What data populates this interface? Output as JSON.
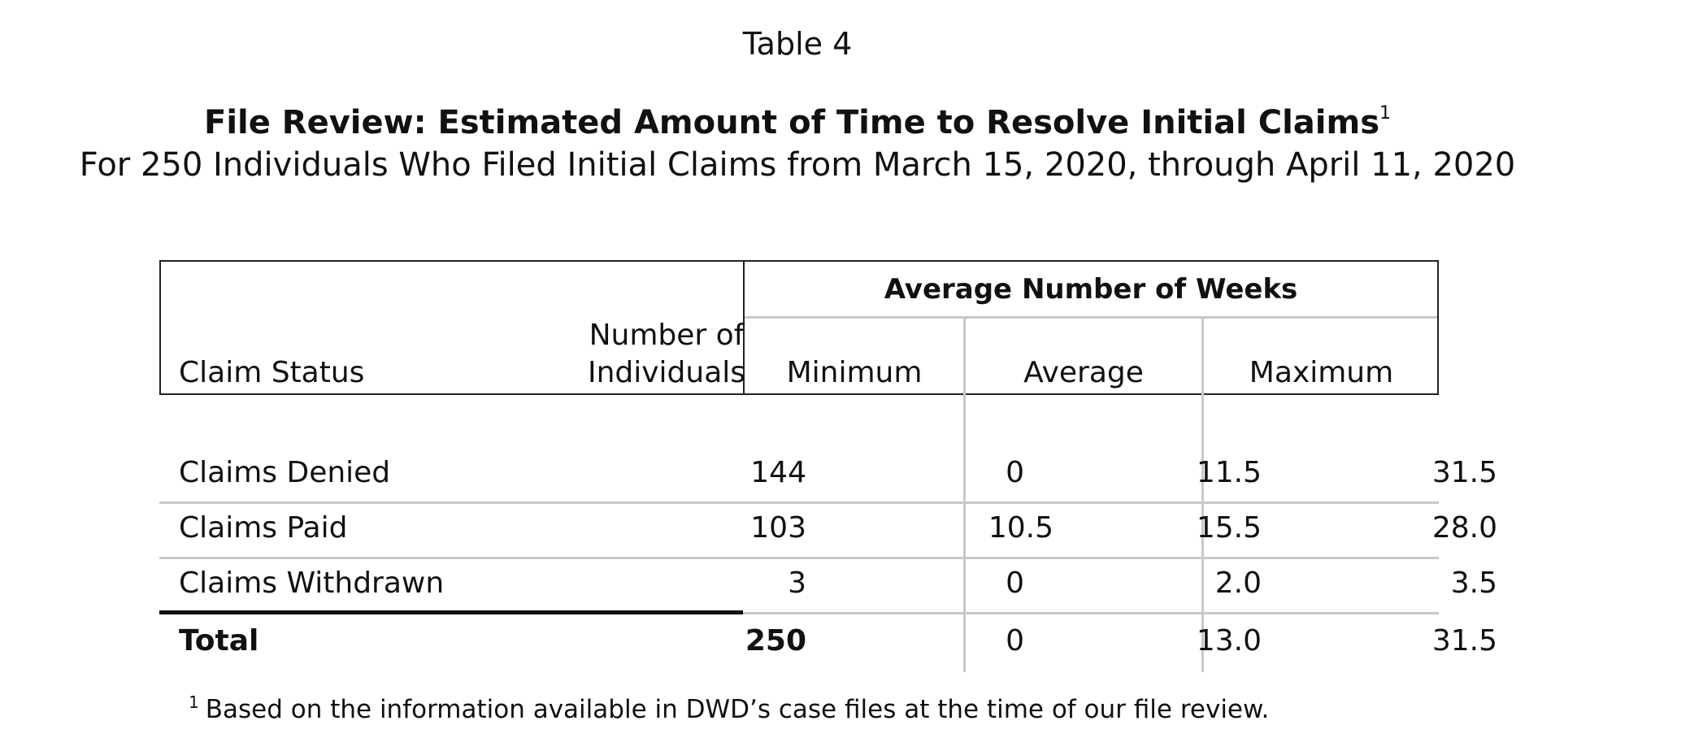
{
  "table_label": "Table 4",
  "title": "File Review: Estimated Amount of Time to Resolve Initial Claims",
  "title_note_marker": "1",
  "subtitle": "For 250 Individuals Who Filed Initial Claims from March 15, 2020, through April 11, 2020",
  "table": {
    "group_header": "Average Number of Weeks",
    "headers": {
      "status": "Claim Status",
      "count_line1": "Number of",
      "count_line2": "Individuals",
      "minimum": "Minimum",
      "average": "Average",
      "maximum": "Maximum"
    },
    "rows": [
      {
        "status": "Claims Denied",
        "count": "144",
        "minimum": "0",
        "average": "11.5",
        "maximum": "31.5"
      },
      {
        "status": "Claims Paid",
        "count": "103",
        "minimum": "10.5",
        "average": "15.5",
        "maximum": "28.0"
      },
      {
        "status": "Claims Withdrawn",
        "count": "3",
        "minimum": "0",
        "average": "2.0",
        "maximum": "3.5"
      }
    ],
    "total": {
      "status": "Total",
      "count": "250",
      "minimum": "0",
      "average": "13.0",
      "maximum": "31.5"
    }
  },
  "footnote": {
    "marker": "1",
    "text": "Based on the information available in DWD’s case files at the time of our file review."
  }
}
